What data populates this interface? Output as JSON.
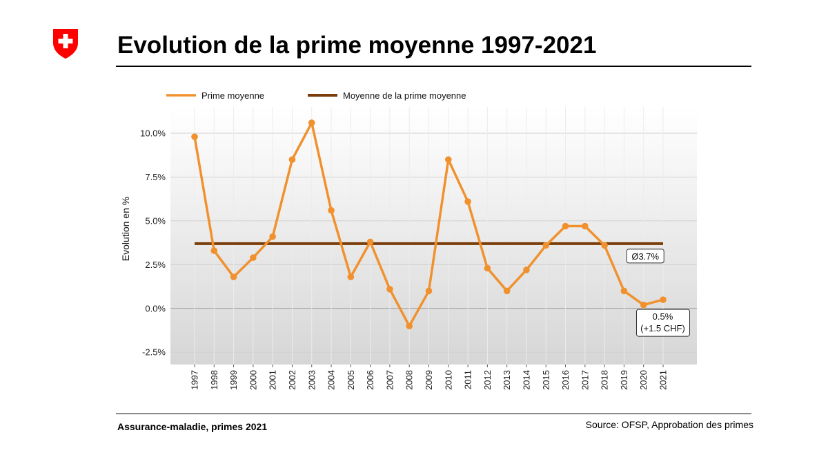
{
  "header": {
    "title": "Evolution de la prime moyenne 1997-2021",
    "logo_icon": "swiss-cross-shield-icon"
  },
  "footer": {
    "left": "Assurance-maladie, primes 2021",
    "right": "Source: OFSP, Approbation des primes"
  },
  "colors": {
    "series": "#f0912e",
    "average": "#7a3d0a",
    "logo": "#ff0000"
  },
  "chart_data": {
    "type": "line",
    "title": "",
    "xlabel": "",
    "ylabel": "Evolution en %",
    "ylim": [
      -3.2,
      11.5
    ],
    "yticks": [
      -2.5,
      0.0,
      2.5,
      5.0,
      7.5,
      10.0
    ],
    "ytick_labels": [
      "-2.5%",
      "0.0%",
      "2.5%",
      "5.0%",
      "7.5%",
      "10.0%"
    ],
    "x": [
      "1997",
      "1998",
      "1999",
      "2000",
      "2001",
      "2002",
      "2003",
      "2004",
      "2005",
      "2006",
      "2007",
      "2008",
      "2009",
      "2010",
      "2011",
      "2012",
      "2013",
      "2014",
      "2015",
      "2016",
      "2017",
      "2018",
      "2019",
      "2020",
      "2021"
    ],
    "grid": true,
    "legend_position": "top-left",
    "series": [
      {
        "name": "Prime moyenne",
        "values": [
          9.8,
          3.3,
          1.8,
          2.9,
          4.1,
          8.5,
          10.6,
          5.6,
          1.8,
          3.8,
          1.1,
          -1.0,
          1.0,
          8.5,
          6.1,
          2.3,
          1.0,
          2.2,
          3.6,
          4.7,
          4.7,
          3.6,
          1.0,
          0.2,
          0.5
        ]
      },
      {
        "name": "Moyenne de la prime moyenne",
        "values": [
          3.7,
          3.7,
          3.7,
          3.7,
          3.7,
          3.7,
          3.7,
          3.7,
          3.7,
          3.7,
          3.7,
          3.7,
          3.7,
          3.7,
          3.7,
          3.7,
          3.7,
          3.7,
          3.7,
          3.7,
          3.7,
          3.7,
          3.7,
          3.7,
          3.7
        ]
      }
    ],
    "annotations": [
      {
        "text": "Ø3.7%",
        "x": "2020",
        "y": 3.7
      },
      {
        "lines": [
          "0.5%",
          "(+1.5 CHF)"
        ],
        "x": "2021",
        "y": 0.5
      }
    ]
  }
}
